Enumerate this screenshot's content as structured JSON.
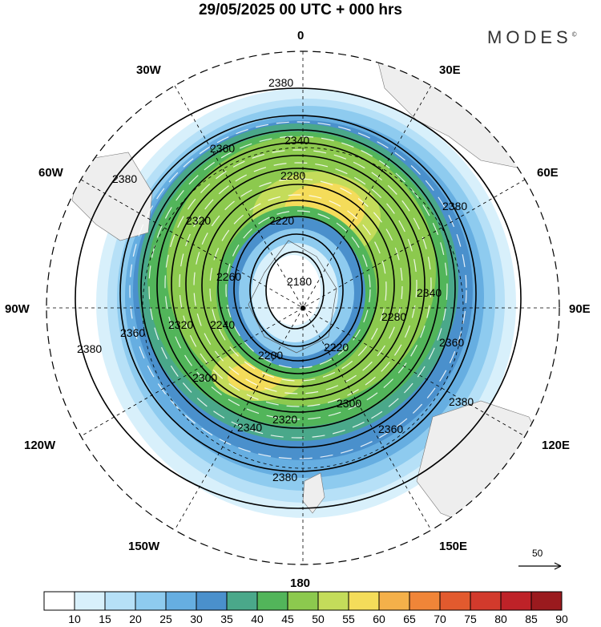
{
  "header": {
    "title": "29/05/2025  00 UTC  + 000 hrs",
    "brand": "MODES",
    "brand_mark": "©"
  },
  "map": {
    "projection": "south polar stereographic",
    "longitude_labels": {
      "top": "0",
      "bottom": "180",
      "right": "90E",
      "left": "90W",
      "upper_left": "30W",
      "upper_right": "30E",
      "left_upper": "60W",
      "right_upper": "60E",
      "left_lower": "120W",
      "right_lower": "120E",
      "lower_left": "150W",
      "lower_right": "150E"
    },
    "contour_labels": [
      "2380",
      "2360",
      "2340",
      "2320",
      "2300",
      "2280",
      "2260",
      "2240",
      "2220",
      "2200",
      "2180"
    ],
    "vector_reference": "50"
  },
  "colorbar": {
    "ticks": [
      "10",
      "15",
      "20",
      "25",
      "30",
      "35",
      "40",
      "45",
      "50",
      "55",
      "60",
      "65",
      "70",
      "75",
      "80",
      "85",
      "90"
    ],
    "colors": [
      "#ffffff",
      "#d8f0fb",
      "#b6e0f7",
      "#8ecbef",
      "#66aee1",
      "#4a90cc",
      "#4aa88a",
      "#52b55a",
      "#8cc94e",
      "#c4dc5a",
      "#f4dc5a",
      "#f4b04a",
      "#f08538",
      "#e25a2e",
      "#d23a2c",
      "#be2228",
      "#9a1a1e"
    ]
  }
}
